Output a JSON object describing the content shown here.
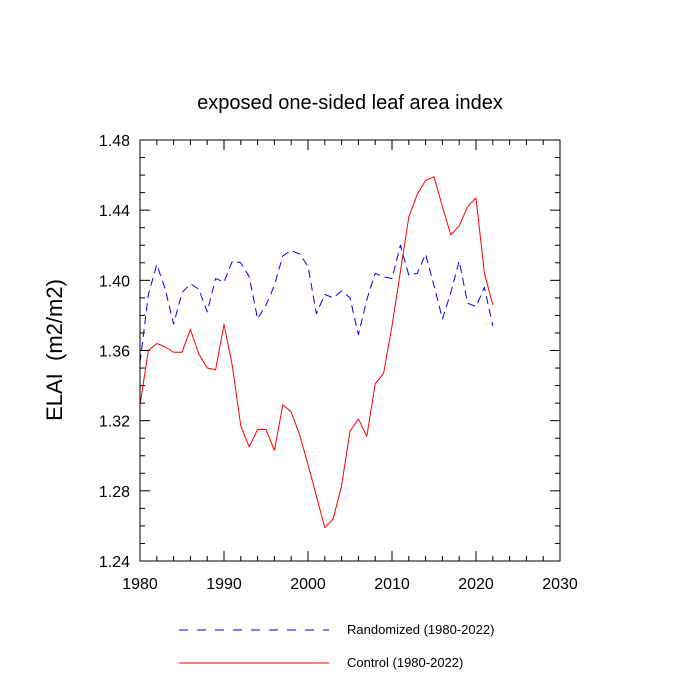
{
  "chart_data": {
    "type": "line",
    "title": "exposed one-sided leaf area index",
    "ylabel": "ELAI  (m2/m2)",
    "xlabel": "",
    "xlim": [
      1980,
      2030
    ],
    "ylim": [
      1.24,
      1.48
    ],
    "x_ticks": [
      1980,
      1990,
      2000,
      2010,
      2020,
      2030
    ],
    "y_ticks": [
      1.24,
      1.28,
      1.32,
      1.36,
      1.4,
      1.44,
      1.48
    ],
    "x_tick_labels": [
      "1980",
      "1990",
      "2000",
      "2010",
      "2020",
      "2030"
    ],
    "y_tick_labels": [
      "1.24",
      "1.28",
      "1.32",
      "1.36",
      "1.40",
      "1.44",
      "1.48"
    ],
    "grid": false,
    "legend_position": "bottom",
    "x": [
      1980,
      1981,
      1982,
      1983,
      1984,
      1985,
      1986,
      1987,
      1988,
      1989,
      1990,
      1991,
      1992,
      1993,
      1994,
      1995,
      1996,
      1997,
      1998,
      1999,
      2000,
      2001,
      2002,
      2003,
      2004,
      2005,
      2006,
      2007,
      2008,
      2009,
      2010,
      2011,
      2012,
      2013,
      2014,
      2015,
      2016,
      2017,
      2018,
      2019,
      2020,
      2021,
      2022
    ],
    "series": [
      {
        "name": "Randomized (1980-2022)",
        "color": "#0000ff",
        "dash": "dashed",
        "values": [
          1.353,
          1.392,
          1.409,
          1.395,
          1.375,
          1.393,
          1.398,
          1.395,
          1.382,
          1.401,
          1.399,
          1.411,
          1.41,
          1.402,
          1.378,
          1.386,
          1.397,
          1.414,
          1.417,
          1.415,
          1.408,
          1.381,
          1.392,
          1.39,
          1.394,
          1.39,
          1.369,
          1.389,
          1.404,
          1.402,
          1.401,
          1.42,
          1.403,
          1.404,
          1.415,
          1.397,
          1.378,
          1.393,
          1.411,
          1.387,
          1.385,
          1.396,
          1.374
        ]
      },
      {
        "name": "Control (1980-2022)",
        "color": "#ff0000",
        "dash": "solid",
        "values": [
          1.329,
          1.36,
          1.364,
          1.362,
          1.359,
          1.359,
          1.372,
          1.358,
          1.35,
          1.349,
          1.375,
          1.351,
          1.317,
          1.305,
          1.315,
          1.315,
          1.303,
          1.329,
          1.325,
          1.312,
          1.295,
          1.277,
          1.259,
          1.264,
          1.283,
          1.314,
          1.321,
          1.311,
          1.341,
          1.347,
          1.374,
          1.405,
          1.436,
          1.449,
          1.457,
          1.459,
          1.442,
          1.426,
          1.431,
          1.442,
          1.447,
          1.404,
          1.386
        ]
      }
    ]
  }
}
